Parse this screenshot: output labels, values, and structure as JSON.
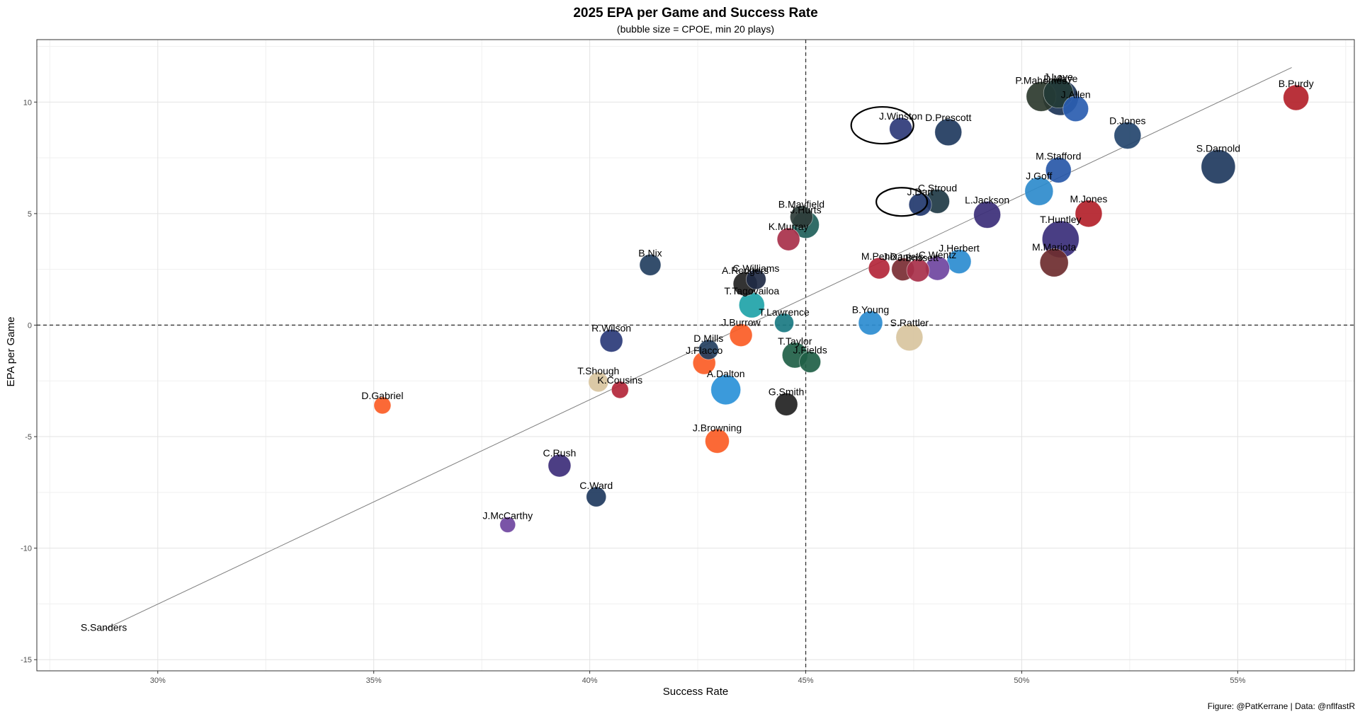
{
  "chart_data": {
    "type": "scatter",
    "title": "2025 EPA per Game and Success Rate",
    "subtitle": "(bubble size = CPOE, min 20 plays)",
    "xlabel": "Success Rate",
    "ylabel": "EPA per Game",
    "caption": "Figure: @PatKerrane | Data: @nflfastR",
    "xlim": [
      0.272,
      0.577
    ],
    "ylim": [
      -15.5,
      12.8
    ],
    "x_ticks": [
      0.3,
      0.35,
      0.4,
      0.45,
      0.5,
      0.55
    ],
    "x_tick_labels": [
      "30%",
      "35%",
      "40%",
      "45%",
      "50%",
      "55%"
    ],
    "y_ticks": [
      -15,
      -10,
      -5,
      0,
      5,
      10
    ],
    "y_tick_labels": [
      "-15",
      "-10",
      "-5",
      "0",
      "5",
      "10"
    ],
    "grid": true,
    "reference_lines": {
      "x": 0.45,
      "y": 0
    },
    "trend_line": {
      "x": [
        0.287,
        0.5625
      ],
      "y": [
        -13.7,
        11.55
      ]
    },
    "highlighted": [
      "J.Winston",
      "J.Dart"
    ],
    "points": [
      {
        "name": "B.Purdy",
        "x": 0.5635,
        "y": 10.2,
        "size": 2.4,
        "color": "#B3212A"
      },
      {
        "name": "P.Mahomes",
        "x": 0.5045,
        "y": 10.25,
        "size": 3.0,
        "color": "#2C3A2E"
      },
      {
        "name": "J.Love",
        "x": 0.5085,
        "y": 10.4,
        "size": 3.0,
        "color": "#233B36"
      },
      {
        "name": "D.Maye",
        "x": 0.509,
        "y": 10.2,
        "size": 3.8,
        "color": "#1C3457"
      },
      {
        "name": "J.Allen",
        "x": 0.5125,
        "y": 9.7,
        "size": 2.4,
        "color": "#2A5DB0"
      },
      {
        "name": "J.Winston",
        "x": 0.472,
        "y": 8.8,
        "size": 2.0,
        "color": "#2E3A78"
      },
      {
        "name": "D.Prescott",
        "x": 0.483,
        "y": 8.65,
        "size": 2.6,
        "color": "#203A5E"
      },
      {
        "name": "D.Jones",
        "x": 0.5245,
        "y": 8.5,
        "size": 2.6,
        "color": "#24456E"
      },
      {
        "name": "S.Darnold",
        "x": 0.5455,
        "y": 7.1,
        "size": 3.6,
        "color": "#1F3A5E"
      },
      {
        "name": "M.Stafford",
        "x": 0.5085,
        "y": 6.95,
        "size": 2.4,
        "color": "#2858A8"
      },
      {
        "name": "J.Goff",
        "x": 0.504,
        "y": 6.0,
        "size": 2.8,
        "color": "#2E8BCC"
      },
      {
        "name": "C.Stroud",
        "x": 0.4805,
        "y": 5.55,
        "size": 2.2,
        "color": "#1F3A45"
      },
      {
        "name": "J.Dart",
        "x": 0.4765,
        "y": 5.4,
        "size": 2.0,
        "color": "#22386E"
      },
      {
        "name": "L.Jackson",
        "x": 0.492,
        "y": 4.95,
        "size": 2.6,
        "color": "#3B2E78"
      },
      {
        "name": "M.Jones",
        "x": 0.5155,
        "y": 5.0,
        "size": 2.6,
        "color": "#B3212A"
      },
      {
        "name": "B.Mayfield",
        "x": 0.449,
        "y": 4.85,
        "size": 2.0,
        "color": "#2F3D3A"
      },
      {
        "name": "J.Hurts",
        "x": 0.45,
        "y": 4.5,
        "size": 2.6,
        "color": "#1F5F5A"
      },
      {
        "name": "T.Huntley",
        "x": 0.509,
        "y": 3.85,
        "size": 4.0,
        "color": "#3A2E7A"
      },
      {
        "name": "K.Murray",
        "x": 0.446,
        "y": 3.85,
        "size": 2.0,
        "color": "#A8304A"
      },
      {
        "name": "J.Herbert",
        "x": 0.4855,
        "y": 2.85,
        "size": 2.2,
        "color": "#2B8CD0"
      },
      {
        "name": "M.Mariota",
        "x": 0.5075,
        "y": 2.8,
        "size": 2.8,
        "color": "#6E2C2F"
      },
      {
        "name": "B.Nix",
        "x": 0.414,
        "y": 2.7,
        "size": 1.8,
        "color": "#233F5F"
      },
      {
        "name": "M.Penix",
        "x": 0.467,
        "y": 2.55,
        "size": 1.8,
        "color": "#B3263A"
      },
      {
        "name": "J.Daniels",
        "x": 0.4725,
        "y": 2.5,
        "size": 2.0,
        "color": "#7A2C33"
      },
      {
        "name": "J.Brissett",
        "x": 0.476,
        "y": 2.45,
        "size": 2.0,
        "color": "#A8304A"
      },
      {
        "name": "C.Wentz",
        "x": 0.4805,
        "y": 2.55,
        "size": 2.2,
        "color": "#6F45A0"
      },
      {
        "name": "C.Williams",
        "x": 0.4385,
        "y": 2.05,
        "size": 1.6,
        "color": "#1F2A44"
      },
      {
        "name": "A.Rodgers",
        "x": 0.436,
        "y": 1.85,
        "size": 2.2,
        "color": "#222222"
      },
      {
        "name": "T.Tagovailoa",
        "x": 0.4375,
        "y": 0.9,
        "size": 2.4,
        "color": "#1FA3A8"
      },
      {
        "name": "T.Lawrence",
        "x": 0.445,
        "y": 0.1,
        "size": 1.5,
        "color": "#1A7A82"
      },
      {
        "name": "B.Young",
        "x": 0.465,
        "y": 0.1,
        "size": 2.2,
        "color": "#2B8CD0"
      },
      {
        "name": "J.Burrow",
        "x": 0.435,
        "y": -0.45,
        "size": 2.0,
        "color": "#FB5C25"
      },
      {
        "name": "S.Rattler",
        "x": 0.474,
        "y": -0.55,
        "size": 2.6,
        "color": "#D8C49E"
      },
      {
        "name": "R.Wilson",
        "x": 0.405,
        "y": -0.7,
        "size": 2.0,
        "color": "#2A3A78"
      },
      {
        "name": "D.Mills",
        "x": 0.4275,
        "y": -1.1,
        "size": 1.6,
        "color": "#233F5F"
      },
      {
        "name": "T.Taylor",
        "x": 0.4475,
        "y": -1.35,
        "size": 2.4,
        "color": "#1F5F46"
      },
      {
        "name": "J.Fields",
        "x": 0.451,
        "y": -1.65,
        "size": 1.8,
        "color": "#1F5F46"
      },
      {
        "name": "J.Flacco",
        "x": 0.4265,
        "y": -1.7,
        "size": 2.0,
        "color": "#FB5C25"
      },
      {
        "name": "T.Shough",
        "x": 0.402,
        "y": -2.55,
        "size": 1.6,
        "color": "#D8C49E"
      },
      {
        "name": "K.Cousins",
        "x": 0.407,
        "y": -2.9,
        "size": 1.2,
        "color": "#B3263A"
      },
      {
        "name": "A.Dalton",
        "x": 0.4315,
        "y": -2.9,
        "size": 3.0,
        "color": "#2A91D8"
      },
      {
        "name": "G.Smith",
        "x": 0.4455,
        "y": -3.55,
        "size": 2.0,
        "color": "#222222"
      },
      {
        "name": "D.Gabriel",
        "x": 0.352,
        "y": -3.6,
        "size": 1.2,
        "color": "#FB5C25"
      },
      {
        "name": "J.Browning",
        "x": 0.4295,
        "y": -5.2,
        "size": 2.2,
        "color": "#FB5C25"
      },
      {
        "name": "C.Rush",
        "x": 0.393,
        "y": -6.3,
        "size": 2.0,
        "color": "#3D2E7A"
      },
      {
        "name": "C.Ward",
        "x": 0.4015,
        "y": -7.7,
        "size": 1.6,
        "color": "#1F3A5E"
      },
      {
        "name": "J.McCarthy",
        "x": 0.381,
        "y": -8.95,
        "size": 1.0,
        "color": "#6F45A0"
      },
      {
        "name": "S.Sanders",
        "x": 0.2875,
        "y": -13.8,
        "size": 0.0,
        "color": "#FB5C25"
      }
    ]
  }
}
